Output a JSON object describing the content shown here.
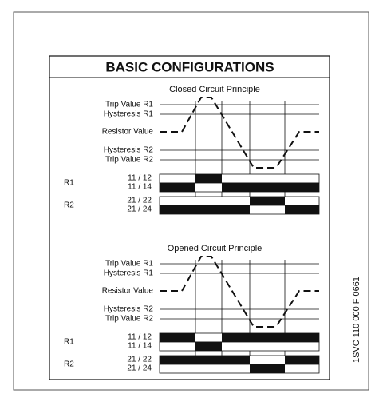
{
  "title": "BASIC CONFIGURATIONS",
  "sections": [
    {
      "title": "Closed Circuit Principle",
      "levels": [
        "Trip Value R1",
        "Hysteresis R1",
        "Resistor Value",
        "Hysteresis R2",
        "Trip Value R2"
      ],
      "relays": [
        {
          "name": "R1",
          "contacts": [
            "11 / 12",
            "11 / 14"
          ]
        },
        {
          "name": "R2",
          "contacts": [
            "21 / 22",
            "21 / 24"
          ]
        }
      ]
    },
    {
      "title": "Opened  Circuit Principle",
      "levels": [
        "Trip Value R1",
        "Hysteresis R1",
        "Resistor Value",
        "Hysteresis R2",
        "Trip Value R2"
      ],
      "relays": [
        {
          "name": "R1",
          "contacts": [
            "11 / 12",
            "11 / 14"
          ]
        },
        {
          "name": "R2",
          "contacts": [
            "21 / 22",
            "21 / 24"
          ]
        }
      ]
    }
  ],
  "side_code": "1SVC 110 000 F 0661"
}
